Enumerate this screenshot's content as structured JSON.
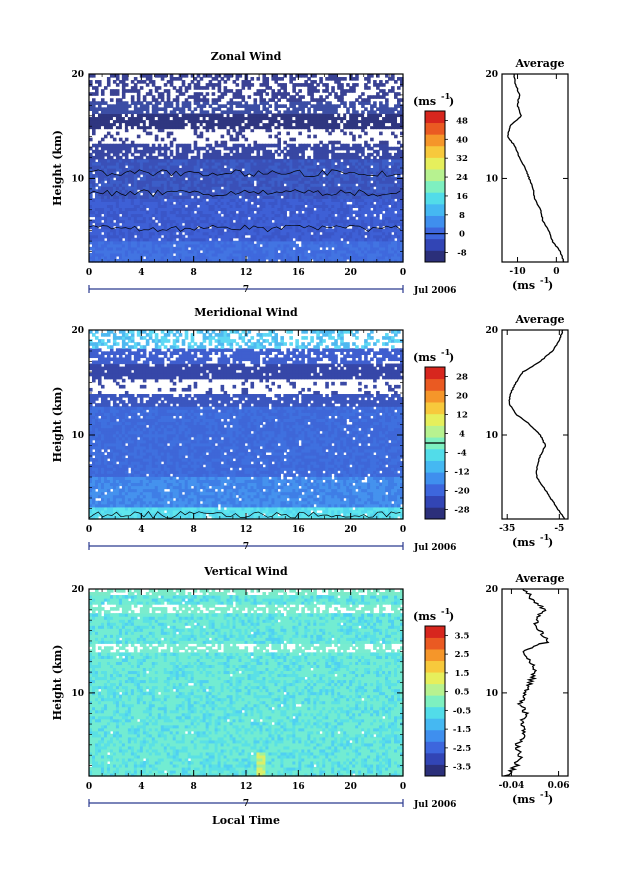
{
  "chart_data": [
    {
      "type": "heatmap",
      "title": "Zonal Wind",
      "ylabel": "Height (km)",
      "xlim": [
        0,
        24
      ],
      "ylim": [
        2,
        20
      ],
      "x_ticks": [
        "0",
        "4",
        "8",
        "12",
        "16",
        "20",
        "0"
      ],
      "y_ticks": [
        "10",
        "20"
      ],
      "day_label": "7",
      "date_label": "Jul 2006",
      "colorbar_unit": "(ms",
      "colorbar_ticks": [
        "-8",
        "0",
        "8",
        "16",
        "24",
        "32",
        "40",
        "48"
      ],
      "colorbar_range": [
        -12,
        52
      ],
      "zero_line": 0,
      "profile": {
        "title": "Average",
        "xlim": [
          -14,
          3
        ],
        "x_ticks": [
          "-10",
          "0"
        ],
        "y_ticks": [
          "10",
          "20"
        ],
        "unit": "(ms",
        "heights": [
          2,
          3,
          4,
          5,
          6,
          7,
          8,
          9,
          10,
          11,
          12,
          13,
          14,
          15,
          16,
          17,
          18,
          19,
          20
        ],
        "values": [
          2,
          1,
          -1,
          -2,
          -3.5,
          -4,
          -5.5,
          -6,
          -7,
          -8,
          -9.5,
          -10.5,
          -12.5,
          -12,
          -9,
          -10,
          -9.5,
          -10.5,
          -11
        ]
      }
    },
    {
      "type": "heatmap",
      "title": "Meridional Wind",
      "ylabel": "Height (km)",
      "xlim": [
        0,
        24
      ],
      "ylim": [
        2,
        20
      ],
      "x_ticks": [
        "0",
        "4",
        "8",
        "12",
        "16",
        "20",
        "0"
      ],
      "y_ticks": [
        "10",
        "20"
      ],
      "day_label": "7",
      "date_label": "Jul 2006",
      "colorbar_unit": "(ms",
      "colorbar_ticks": [
        "-28",
        "-20",
        "-12",
        "-4",
        "4",
        "12",
        "20",
        "28"
      ],
      "colorbar_range": [
        -32,
        32
      ],
      "zero_line": 0,
      "profile": {
        "title": "Average",
        "xlim": [
          -38,
          0
        ],
        "x_ticks": [
          "-35",
          "-5"
        ],
        "y_ticks": [
          "10",
          "20"
        ],
        "unit": "(ms",
        "heights": [
          2,
          3,
          4,
          5,
          6,
          7,
          8,
          9,
          10,
          11,
          12,
          13,
          14,
          15,
          16,
          17,
          18,
          19,
          20
        ],
        "values": [
          -2,
          -6,
          -10,
          -14,
          -18,
          -18,
          -16,
          -13,
          -16,
          -22,
          -30,
          -34,
          -33,
          -30,
          -26,
          -16,
          -9,
          -5,
          -3
        ]
      }
    },
    {
      "type": "heatmap",
      "title": "Vertical Wind",
      "ylabel": "Height (km)",
      "xlabel": "Local Time",
      "xlim": [
        0,
        24
      ],
      "ylim": [
        2,
        20
      ],
      "x_ticks": [
        "0",
        "4",
        "8",
        "12",
        "16",
        "20",
        "0"
      ],
      "y_ticks": [
        "10",
        "20"
      ],
      "day_label": "7",
      "date_label": "Jul 2006",
      "colorbar_unit": "(ms",
      "colorbar_ticks": [
        "-3.5",
        "-2.5",
        "-1.5",
        "-0.5",
        "0.5",
        "1.5",
        "2.5",
        "3.5"
      ],
      "colorbar_range": [
        -4,
        4
      ],
      "profile": {
        "title": "Average",
        "xlim": [
          -0.06,
          0.08
        ],
        "x_ticks": [
          "-0.04",
          "0.06"
        ],
        "y_ticks": [
          "10",
          "20"
        ],
        "unit": "(ms",
        "heights": [
          2,
          3,
          4,
          5,
          6,
          7,
          8,
          9,
          10,
          11,
          12,
          13,
          14,
          15,
          16,
          17,
          18,
          19,
          20
        ],
        "values": [
          -0.05,
          -0.03,
          -0.02,
          -0.03,
          -0.01,
          -0.02,
          -0.01,
          -0.02,
          -0.01,
          0.0,
          0.01,
          0.0,
          -0.02,
          0.04,
          0.02,
          0.01,
          0.03,
          0.0,
          -0.01
        ]
      }
    }
  ],
  "colors": {
    "white_gap": "#ffffff",
    "dark_blue": "#3a4a9e",
    "mid_blue": "#3f63d8",
    "cyan": "#4fd9f0",
    "green_cyan": "#6ee8c4"
  }
}
